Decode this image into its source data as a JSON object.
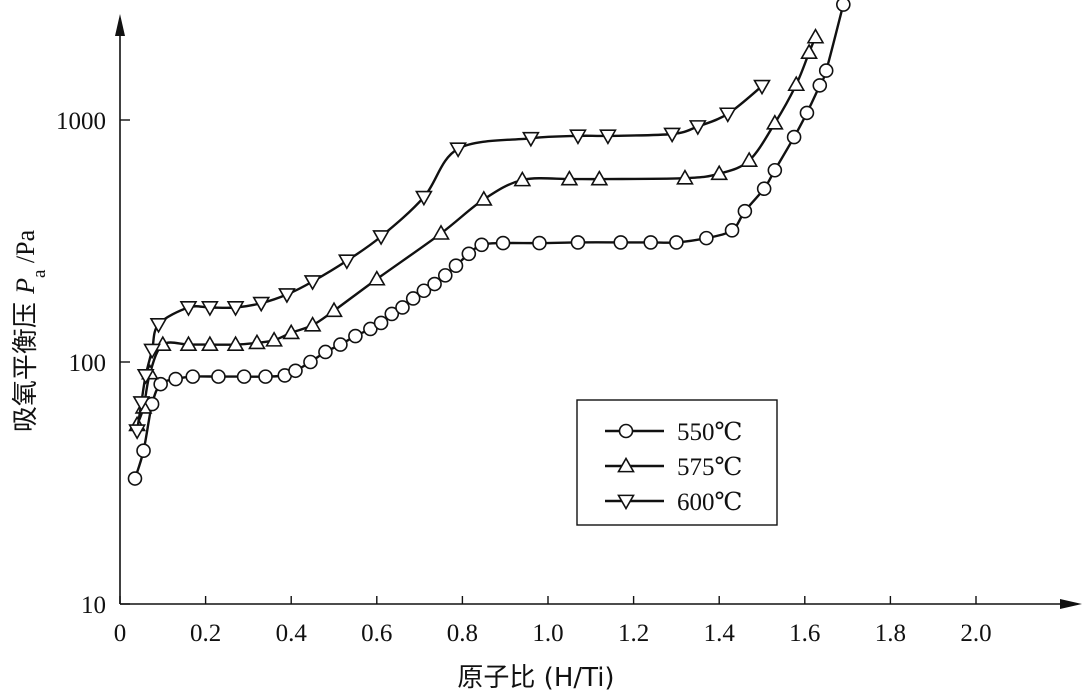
{
  "chart_data": {
    "type": "line",
    "title": "",
    "xlabel": "原子比 (H/Ti)",
    "ylabel": "吸氧平衡压 Pa /Pa",
    "ylabel_parts": {
      "main": "吸氧平衡压 ",
      "var": "P",
      "sub": "a",
      "unit": " /Pa"
    },
    "x_scale": "linear",
    "y_scale": "log",
    "xlim": [
      0,
      2.2
    ],
    "ylim": [
      10,
      3000
    ],
    "x_ticks": [
      "0",
      "0.2",
      "0.4",
      "0.6",
      "0.8",
      "1.0",
      "1.2",
      "1.4",
      "1.6",
      "1.8",
      "2.0"
    ],
    "x_tick_values": [
      0,
      0.2,
      0.4,
      0.6,
      0.8,
      1.0,
      1.2,
      1.4,
      1.6,
      1.8,
      2.0
    ],
    "y_ticks": [
      "10",
      "100",
      "1000"
    ],
    "y_tick_values": [
      10,
      100,
      1000
    ],
    "grid": false,
    "legend_position": "center-right",
    "series": [
      {
        "name": "550℃",
        "marker": "circle",
        "x": [
          0.035,
          0.055,
          0.075,
          0.095,
          0.13,
          0.17,
          0.23,
          0.29,
          0.34,
          0.385,
          0.41,
          0.445,
          0.48,
          0.515,
          0.55,
          0.585,
          0.61,
          0.635,
          0.66,
          0.685,
          0.71,
          0.735,
          0.76,
          0.785,
          0.815,
          0.845,
          0.895,
          0.98,
          1.07,
          1.17,
          1.24,
          1.3,
          1.37,
          1.43,
          1.46,
          1.505,
          1.53,
          1.575,
          1.605,
          1.635,
          1.65,
          1.69
        ],
        "y": [
          33,
          43,
          67,
          81,
          85,
          87,
          87,
          87,
          87,
          88,
          92,
          100,
          110,
          118,
          128,
          137,
          145,
          158,
          168,
          183,
          197,
          210,
          228,
          250,
          280,
          305,
          310,
          310,
          312,
          312,
          312,
          312,
          325,
          350,
          420,
          520,
          620,
          850,
          1070,
          1390,
          1600,
          3000
        ]
      },
      {
        "name": "575℃",
        "marker": "triangle-up",
        "x": [
          0.04,
          0.055,
          0.07,
          0.1,
          0.16,
          0.21,
          0.27,
          0.32,
          0.36,
          0.4,
          0.45,
          0.5,
          0.6,
          0.75,
          0.85,
          0.94,
          1.05,
          1.12,
          1.32,
          1.4,
          1.47,
          1.53,
          1.58,
          1.61,
          1.625
        ],
        "y": [
          55,
          65,
          90,
          118,
          118,
          118,
          118,
          120,
          123,
          132,
          142,
          163,
          220,
          340,
          470,
          565,
          570,
          570,
          575,
          600,
          680,
          970,
          1400,
          1900,
          2200
        ]
      },
      {
        "name": "600℃",
        "marker": "triangle-down",
        "x": [
          0.04,
          0.05,
          0.06,
          0.075,
          0.09,
          0.16,
          0.21,
          0.27,
          0.33,
          0.39,
          0.45,
          0.53,
          0.61,
          0.71,
          0.79,
          0.96,
          1.07,
          1.14,
          1.29,
          1.35,
          1.42,
          1.5
        ],
        "y": [
          52,
          68,
          88,
          112,
          143,
          168,
          168,
          168,
          175,
          190,
          215,
          262,
          330,
          480,
          760,
          840,
          860,
          860,
          875,
          940,
          1060,
          1380
        ]
      }
    ]
  }
}
